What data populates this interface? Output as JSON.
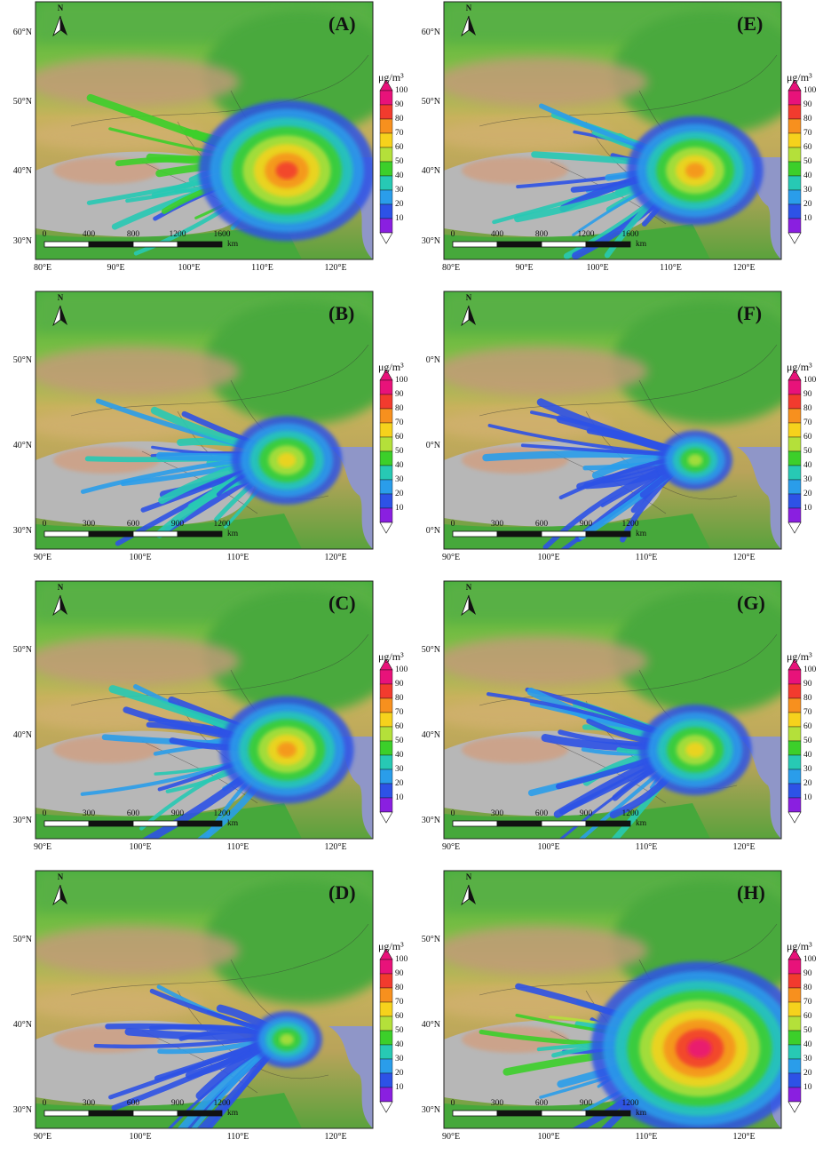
{
  "unit_label": "μg/m³",
  "colorbar_ticks": [
    "100",
    "90",
    "80",
    "70",
    "60",
    "50",
    "40",
    "30",
    "20",
    "10"
  ],
  "colorbar_colors": [
    "#e8127a",
    "#f23b2e",
    "#f7901e",
    "#f6d21c",
    "#b4e03a",
    "#3ccf2a",
    "#27c9b4",
    "#2a9dea",
    "#2d52e6",
    "#8a1fe0"
  ],
  "scale_unit": "km",
  "north_symbol": "N",
  "panels": [
    {
      "id": "A",
      "label": "(A)",
      "lat_labels": [
        "60°N",
        "50°N",
        "40°N",
        "30°N"
      ],
      "lon_labels": [
        "80°E",
        "90°E",
        "100°E",
        "110°E",
        "120°E"
      ],
      "scale_labels": [
        "0",
        "400",
        "800",
        "1200",
        "1600"
      ],
      "intensity": 0.8
    },
    {
      "id": "B",
      "label": "(B)",
      "lat_labels": [
        "50°N",
        "40°N",
        "30°N"
      ],
      "lon_labels": [
        "90°E",
        "100°E",
        "110°E",
        "120°E"
      ],
      "scale_labels": [
        "0",
        "300",
        "600",
        "900",
        "1200"
      ],
      "intensity": 0.55
    },
    {
      "id": "C",
      "label": "(C)",
      "lat_labels": [
        "50°N",
        "40°N",
        "30°N"
      ],
      "lon_labels": [
        "90°E",
        "100°E",
        "110°E",
        "120°E"
      ],
      "scale_labels": [
        "0",
        "300",
        "600",
        "900",
        "1200"
      ],
      "intensity": 0.6
    },
    {
      "id": "D",
      "label": "(D)",
      "lat_labels": [
        "50°N",
        "40°N",
        "30°N"
      ],
      "lon_labels": [
        "90°E",
        "100°E",
        "110°E",
        "120°E"
      ],
      "scale_labels": [
        "0",
        "300",
        "600",
        "900",
        "1200"
      ],
      "intensity": 0.25
    },
    {
      "id": "E",
      "label": "(E)",
      "lat_labels": [
        "60°N",
        "50°N",
        "40°N",
        "30°N"
      ],
      "lon_labels": [
        "80°E",
        "90°E",
        "100°E",
        "110°E",
        "120°E"
      ],
      "scale_labels": [
        "0",
        "400",
        "800",
        "1200",
        "1600"
      ],
      "intensity": 0.62
    },
    {
      "id": "F",
      "label": "(F)",
      "lat_labels": [
        "0°N",
        "0°N",
        "0°N"
      ],
      "lon_labels": [
        "90°E",
        "100°E",
        "110°E",
        "120°E"
      ],
      "scale_labels": [
        "0",
        "300",
        "600",
        "900",
        "1200"
      ],
      "intensity": 0.3
    },
    {
      "id": "G",
      "label": "(G)",
      "lat_labels": [
        "50°N",
        "40°N",
        "30°N"
      ],
      "lon_labels": [
        "90°E",
        "100°E",
        "110°E",
        "120°E"
      ],
      "scale_labels": [
        "0",
        "300",
        "600",
        "900",
        "1200"
      ],
      "intensity": 0.58
    },
    {
      "id": "H",
      "label": "(H)",
      "lat_labels": [
        "50°N",
        "40°N",
        "30°N"
      ],
      "lon_labels": [
        "90°E",
        "100°E",
        "110°E",
        "120°E"
      ],
      "scale_labels": [
        "0",
        "300",
        "600",
        "900",
        "1200"
      ],
      "intensity": 0.95
    }
  ]
}
